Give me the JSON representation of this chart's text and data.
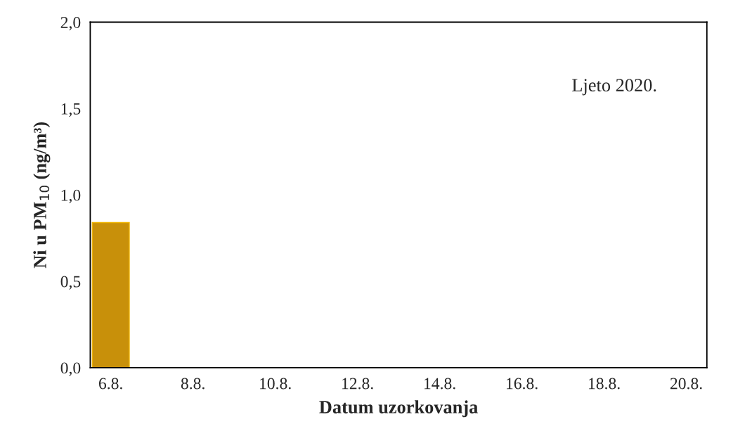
{
  "chart_data": {
    "type": "bar",
    "xlabel": "Datum uzorkovanja",
    "ylabel": "Ni u PM$_{10}$ (ng/m³)",
    "categories": [
      "6.8.",
      null,
      "8.8.",
      null,
      "10.8.",
      null,
      "12.8.",
      null,
      "14.8.",
      null,
      "16.8.",
      null,
      "18.8.",
      null,
      "20.8."
    ],
    "values": [
      0.84,
      null,
      null,
      null,
      null,
      null,
      null,
      null,
      null,
      null,
      null,
      null,
      null,
      null,
      null
    ],
    "color": "#c8900a",
    "ylim": [
      0,
      2.0
    ],
    "yticks": [
      {
        "value": 0,
        "label": "0,0"
      },
      {
        "value": 0.5,
        "label": "0,5"
      },
      {
        "value": 1.0,
        "label": "1,0"
      },
      {
        "value": 1.5,
        "label": "1,5"
      },
      {
        "value": 2.0,
        "label": "2,0"
      }
    ],
    "annotations": [
      "Ljeto 2020."
    ],
    "grid": false,
    "legend": false
  }
}
